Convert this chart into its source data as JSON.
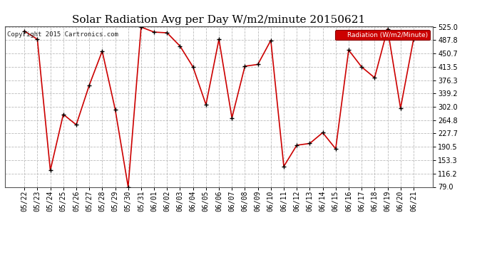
{
  "title": "Solar Radiation Avg per Day W/m2/minute 20150621",
  "copyright_text": "Copyright 2015 Cartronics.com",
  "legend_label": "Radiation (W/m2/Minute)",
  "dates": [
    "05/22",
    "05/23",
    "05/24",
    "05/25",
    "05/26",
    "05/27",
    "05/28",
    "05/29",
    "05/30",
    "05/31",
    "06/01",
    "06/02",
    "06/03",
    "06/04",
    "06/05",
    "06/06",
    "06/07",
    "06/08",
    "06/09",
    "06/10",
    "06/11",
    "06/12",
    "06/13",
    "06/14",
    "06/15",
    "06/16",
    "06/17",
    "06/18",
    "06/19",
    "06/20",
    "06/21"
  ],
  "values": [
    513,
    490,
    125,
    281,
    252,
    362,
    457,
    295,
    79,
    524,
    510,
    508,
    471,
    413,
    308,
    490,
    271,
    415,
    420,
    487,
    136,
    195,
    200,
    230,
    185,
    460,
    413,
    383,
    519,
    298,
    490
  ],
  "ylim": [
    79.0,
    525.0
  ],
  "yticks": [
    79.0,
    116.2,
    153.3,
    190.5,
    227.7,
    264.8,
    302.0,
    339.2,
    376.3,
    413.5,
    450.7,
    487.8,
    525.0
  ],
  "line_color": "#cc0000",
  "marker_color": "#000000",
  "bg_color": "#ffffff",
  "grid_color": "#bbbbbb",
  "title_fontsize": 11,
  "axis_fontsize": 7,
  "legend_bg": "#cc0000",
  "legend_text_color": "#ffffff"
}
